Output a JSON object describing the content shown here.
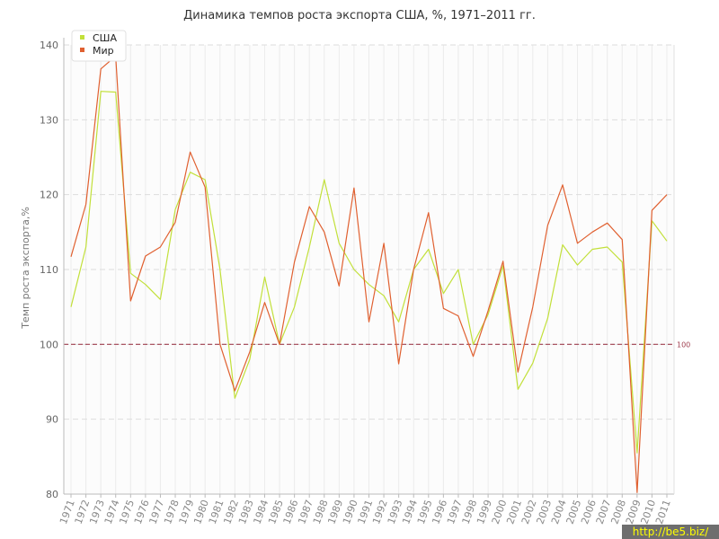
{
  "chart_data": {
    "type": "line",
    "title": "Динамика темпов роста экспорта США, %, 1971–2011 гг.",
    "xlabel": "",
    "ylabel": "Темп роста экспорта,%",
    "x": [
      "1971",
      "1972",
      "1973",
      "1974",
      "1975",
      "1976",
      "1977",
      "1978",
      "1979",
      "1980",
      "1981",
      "1982",
      "1983",
      "1984",
      "1985",
      "1986",
      "1987",
      "1988",
      "1989",
      "1990",
      "1991",
      "1992",
      "1993",
      "1994",
      "1995",
      "1996",
      "1997",
      "1998",
      "1999",
      "2000",
      "2001",
      "2002",
      "2003",
      "2004",
      "2005",
      "2006",
      "2007",
      "2008",
      "2009",
      "2010",
      "2011"
    ],
    "ylim": [
      80,
      140
    ],
    "yticks": [
      80,
      90,
      100,
      110,
      120,
      130,
      140
    ],
    "grid": true,
    "legend_position": "top-left",
    "reference_line": {
      "value": 100,
      "label": "100",
      "color": "#a04050"
    },
    "series": [
      {
        "name": "США",
        "color": "#c2e03a",
        "values": [
          105,
          113,
          133.8,
          133.7,
          109.5,
          108,
          106,
          118,
          123,
          122,
          110,
          92.8,
          98,
          109,
          100,
          105,
          113,
          122,
          113.5,
          110,
          108,
          106.5,
          103,
          110,
          112.7,
          106.8,
          110,
          100,
          104,
          110.5,
          94,
          97.5,
          103.5,
          113.3,
          110.6,
          112.7,
          113,
          111,
          85.5,
          116.5,
          113.8
        ]
      },
      {
        "name": "Мир",
        "color": "#e06030",
        "values": [
          111.7,
          118.7,
          136.8,
          138.5,
          105.8,
          111.8,
          113,
          116.3,
          125.7,
          121,
          100,
          93.8,
          99,
          105.6,
          100,
          111,
          118.4,
          115,
          107.8,
          120.9,
          103,
          113.5,
          97.4,
          110,
          117.6,
          104.8,
          103.8,
          98.4,
          104.5,
          111.1,
          96.3,
          105,
          115.9,
          121.3,
          113.5,
          115,
          116.2,
          114,
          80.2,
          117.9,
          120
        ]
      }
    ]
  },
  "watermark": "http://be5.biz/"
}
